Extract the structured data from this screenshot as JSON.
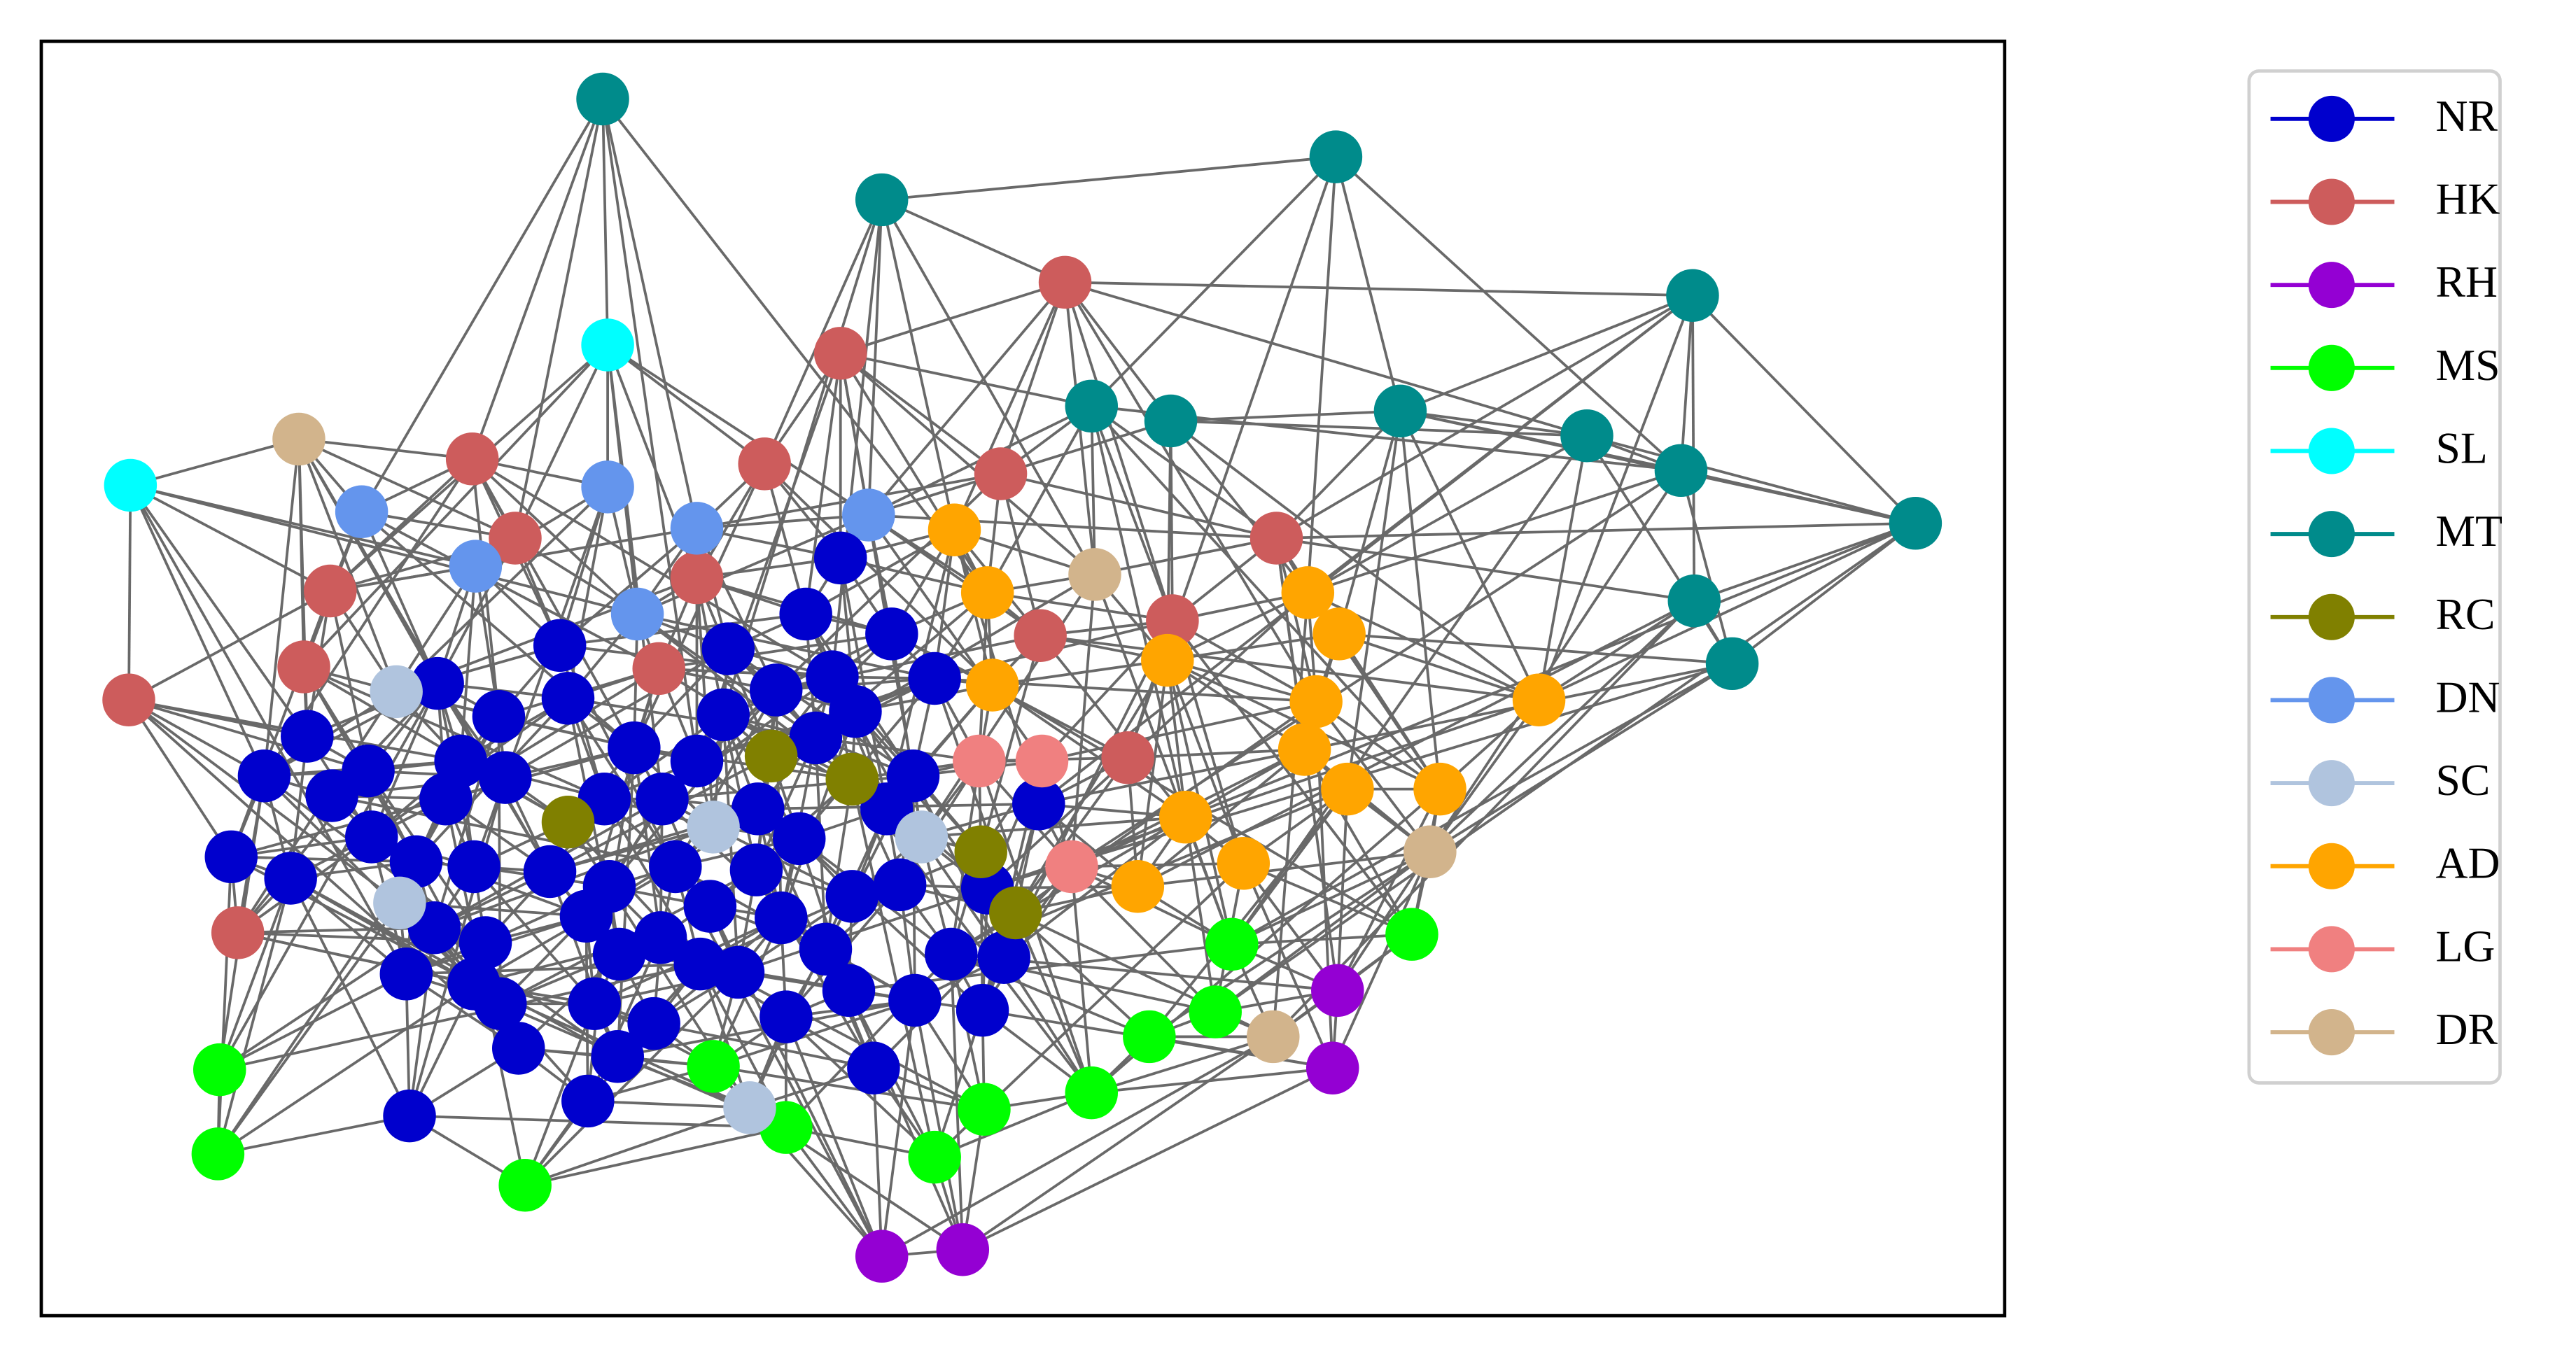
{
  "legend": {
    "entries": [
      {
        "label": "NR",
        "color": "#0000cd"
      },
      {
        "label": "HK",
        "color": "#cd5c5c"
      },
      {
        "label": "RH",
        "color": "#9400d3"
      },
      {
        "label": "MS",
        "color": "#00ff00"
      },
      {
        "label": "SL",
        "color": "#00ffff"
      },
      {
        "label": "MT",
        "color": "#008b8b"
      },
      {
        "label": "RC",
        "color": "#808000"
      },
      {
        "label": "DN",
        "color": "#6495ed"
      },
      {
        "label": "SC",
        "color": "#b0c4de"
      },
      {
        "label": "AD",
        "color": "#ffa500"
      },
      {
        "label": "LG",
        "color": "#f08080"
      },
      {
        "label": "DR",
        "color": "#d2b48c"
      }
    ]
  }
}
